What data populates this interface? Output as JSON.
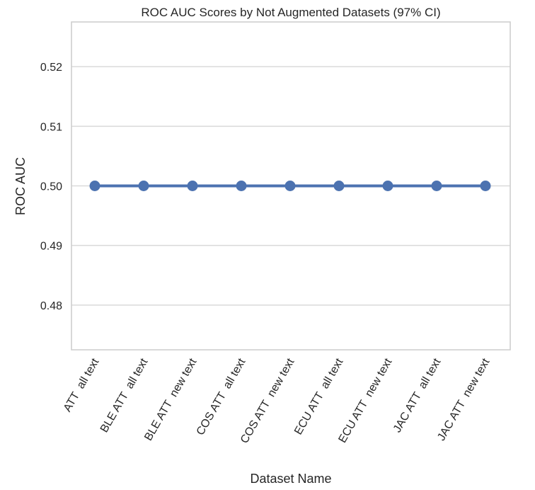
{
  "chart_data": {
    "type": "line",
    "title": "ROC AUC Scores by Not Augmented Datasets (97% CI)",
    "xlabel": "Dataset Name",
    "ylabel": "ROC AUC",
    "categories": [
      "ATT  all text",
      "BLE ATT  all text",
      "BLE ATT  new text",
      "COS ATT  all text",
      "COS ATT  new text",
      "ECU ATT  all text",
      "ECU ATT  new text",
      "JAC ATT  all text",
      "JAC ATT  new text"
    ],
    "series": [
      {
        "values": [
          0.5,
          0.5,
          0.5,
          0.5,
          0.5,
          0.5,
          0.5,
          0.5,
          0.5
        ]
      }
    ],
    "ylim": [
      0.4725,
      0.5275
    ],
    "yticks": [
      "0.48",
      "0.49",
      "0.50",
      "0.51",
      "0.52"
    ],
    "grid": true,
    "legend": "none",
    "color": "#4c72b0"
  }
}
